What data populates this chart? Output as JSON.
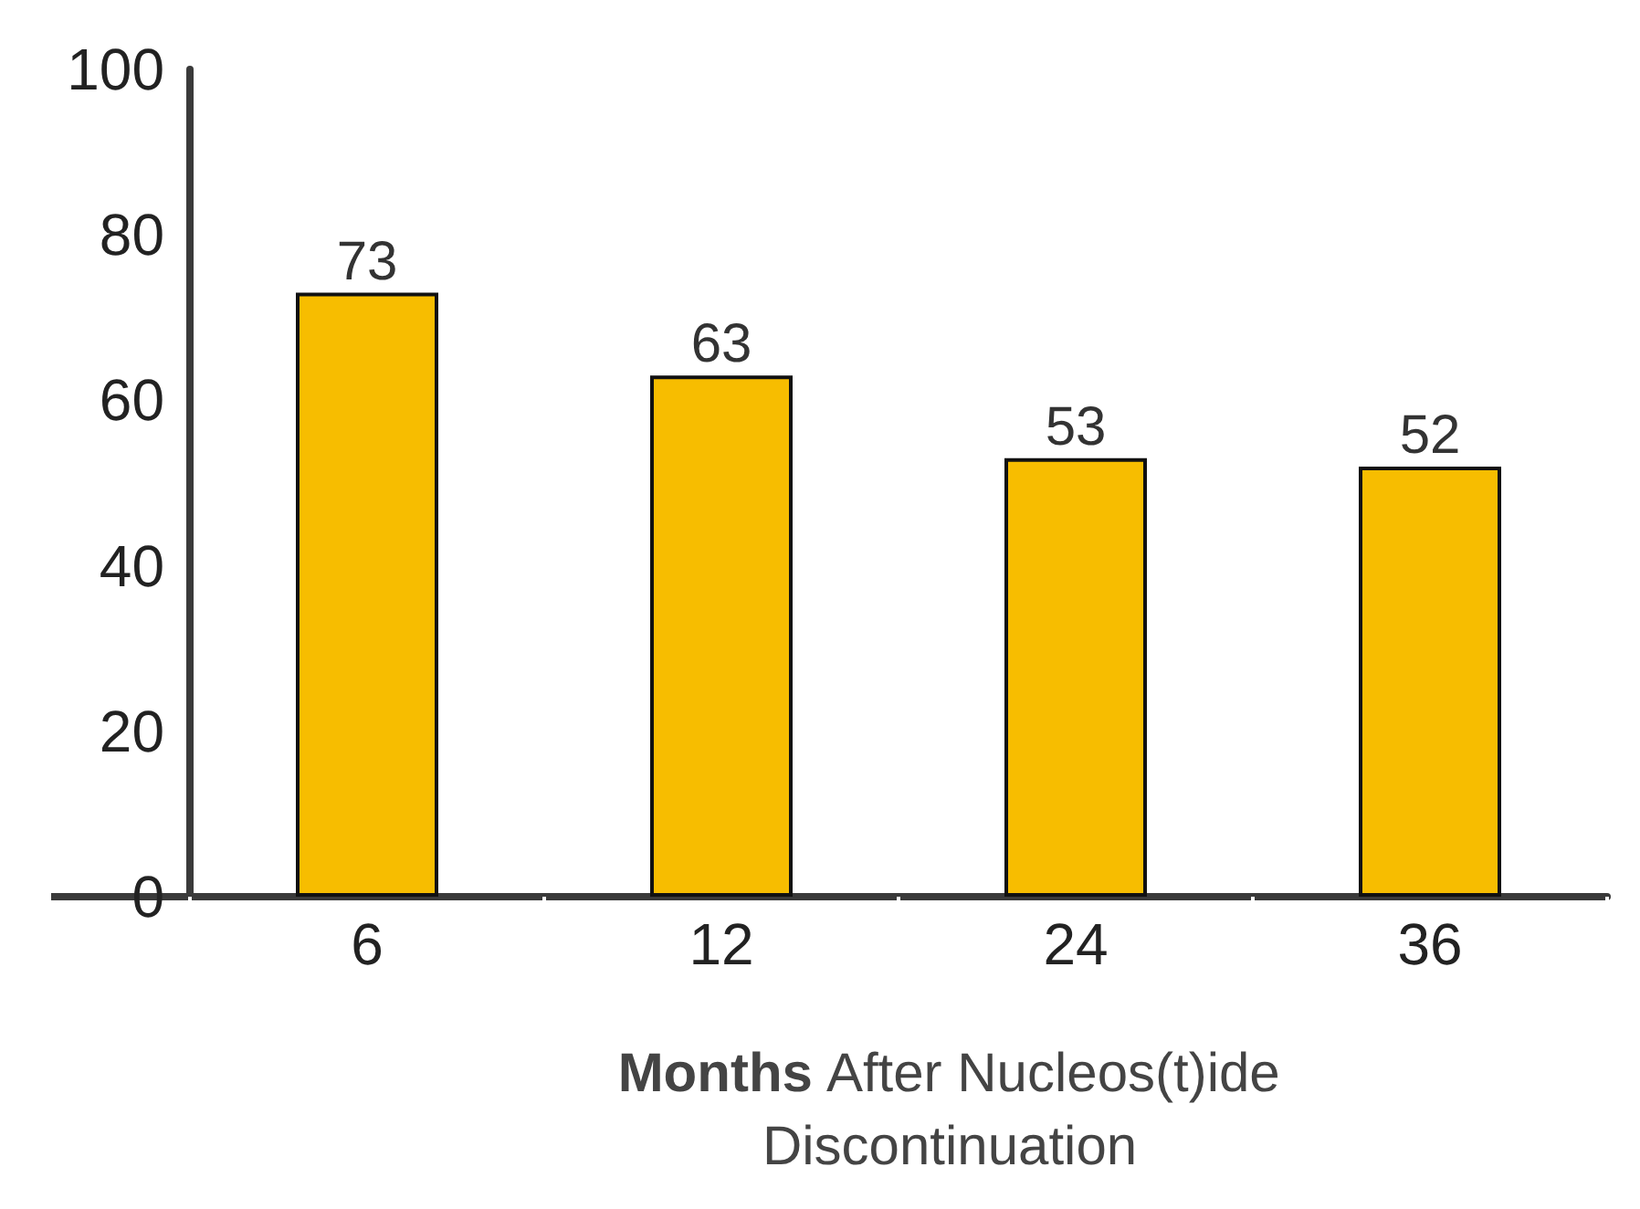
{
  "chart_data": {
    "type": "bar",
    "xlabel": "Months After Nucleos(t)ide Discontinuation",
    "categories": [
      "6",
      "12",
      "24",
      "36"
    ],
    "values": [
      73,
      63,
      53,
      52
    ],
    "color": "#f7bd00",
    "ylim": [
      0,
      100
    ],
    "yticks": [
      0,
      20,
      40,
      60,
      80,
      100
    ],
    "grid": false,
    "data_labels": true
  }
}
